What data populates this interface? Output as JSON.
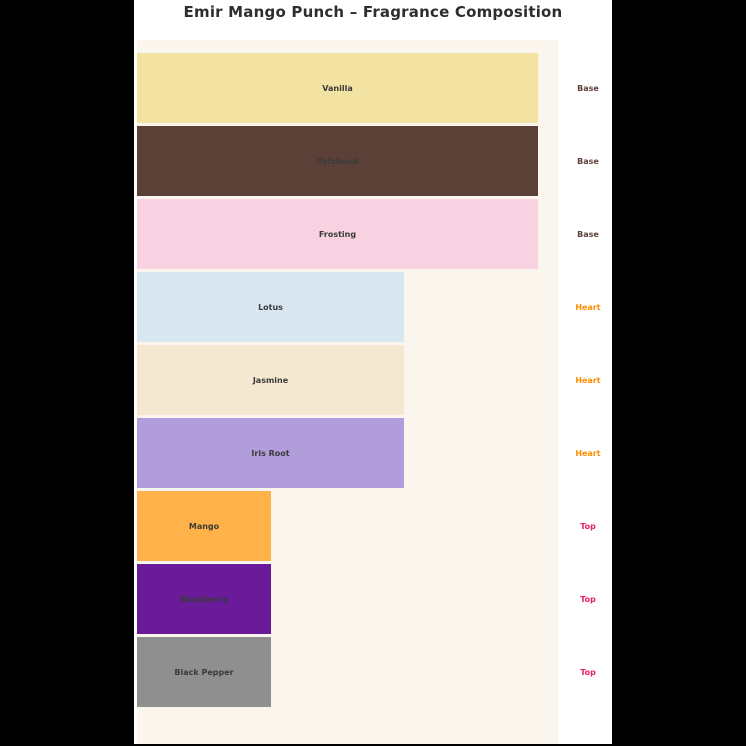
{
  "page": {
    "background_color": "#000000",
    "figure_background_color": "#ffffff"
  },
  "chart_data": {
    "type": "bar",
    "orientation": "horizontal",
    "title": "Emir Mango Punch – Fragrance Composition",
    "title_color": "#2e2e2e",
    "plot_background_color": "#faf6ee",
    "xlabel": "",
    "ylabel": "",
    "xlim": [
      0,
      3.15
    ],
    "grid": false,
    "legend": false,
    "bar_label_color": "#3a3a3a",
    "categories": [
      "Vanilla",
      "Patchouli",
      "Frosting",
      "Lotus",
      "Jasmine",
      "Iris Root",
      "Mango",
      "Blackberry",
      "Black Pepper"
    ],
    "series": [
      {
        "name": "note_strength",
        "values": [
          3,
          3,
          3,
          2,
          2,
          2,
          1,
          1,
          1
        ]
      }
    ],
    "notes": [
      {
        "label": "Vanilla",
        "group": "Base",
        "value": 3,
        "color": "#f2e3a3"
      },
      {
        "label": "Patchouli",
        "group": "Base",
        "value": 3,
        "color": "#5b4037"
      },
      {
        "label": "Frosting",
        "group": "Base",
        "value": 3,
        "color": "#f8d2e1"
      },
      {
        "label": "Lotus",
        "group": "Heart",
        "value": 2,
        "color": "#d9e7f1"
      },
      {
        "label": "Jasmine",
        "group": "Heart",
        "value": 2,
        "color": "#f5e8d1"
      },
      {
        "label": "Iris Root",
        "group": "Heart",
        "value": 2,
        "color": "#b19dd9"
      },
      {
        "label": "Mango",
        "group": "Top",
        "value": 1,
        "color": "#feb249"
      },
      {
        "label": "Blackberry",
        "group": "Top",
        "value": 1,
        "color": "#6a1b9a"
      },
      {
        "label": "Black Pepper",
        "group": "Top",
        "value": 1,
        "color": "#8f8f8f"
      }
    ],
    "group_label_colors": {
      "Base": "#5d4037",
      "Heart": "#ff8c00",
      "Top": "#e91e63"
    }
  }
}
